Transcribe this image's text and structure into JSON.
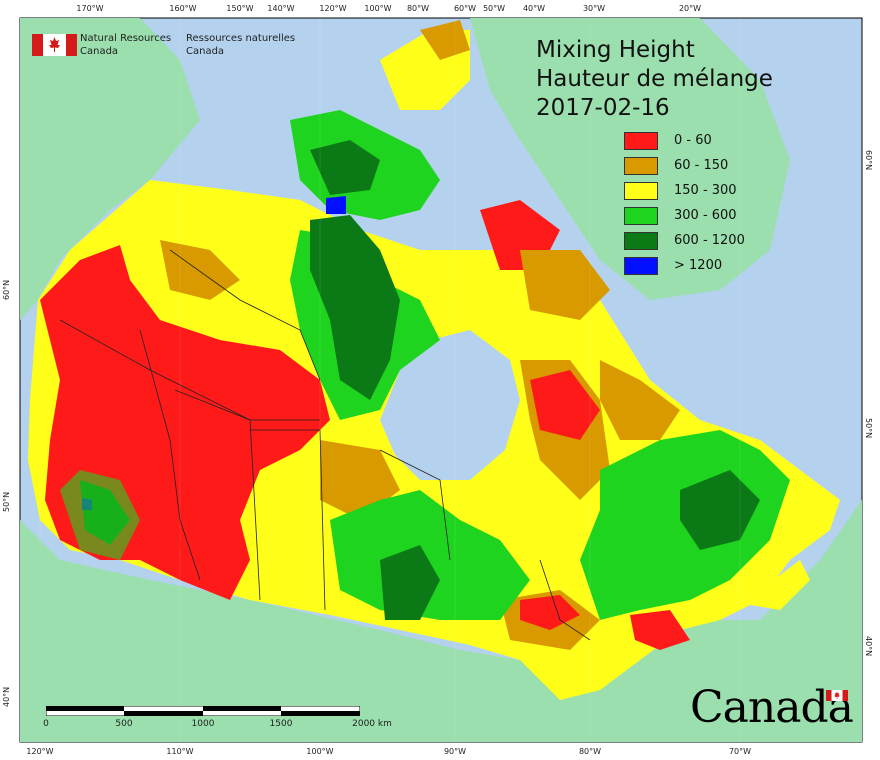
{
  "agency": {
    "en_line1": "Natural Resources",
    "en_line2": "Canada",
    "fr_line1": "Ressources naturelles",
    "fr_line2": "Canada"
  },
  "title": {
    "line1": "Mixing Height",
    "line2": "Hauteur de mélange",
    "date": "2017-02-16"
  },
  "legend": [
    {
      "label": "0 - 60",
      "color": "#ff1a1a"
    },
    {
      "label": "60 - 150",
      "color": "#d99a00"
    },
    {
      "label": "150 - 300",
      "color": "#ffff1a"
    },
    {
      "label": "300 - 600",
      "color": "#1fd41f"
    },
    {
      "label": "600 - 1200",
      "color": "#0b7a16"
    },
    {
      "label": "> 1200",
      "color": "#0010ff"
    }
  ],
  "top_ticks": [
    "170°W",
    "160°W",
    "150°W",
    "140°W",
    "120°W",
    "100°W",
    "80°W",
    "60°W",
    "50°W",
    "40°W",
    "30°W",
    "20°W"
  ],
  "bottom_ticks": [
    "120°W",
    "110°W",
    "100°W",
    "90°W",
    "80°W",
    "70°W"
  ],
  "left_ticks": [
    "60°N",
    "50°N",
    "40°N"
  ],
  "right_ticks": [
    "60°N",
    "50°N",
    "40°N"
  ],
  "scale": {
    "labels": [
      "0",
      "500",
      "1000",
      "1500",
      "2000 km"
    ]
  },
  "wordmark": "Canada",
  "colors": {
    "ocean": "#b4d2ee",
    "land": "#9adfad"
  }
}
